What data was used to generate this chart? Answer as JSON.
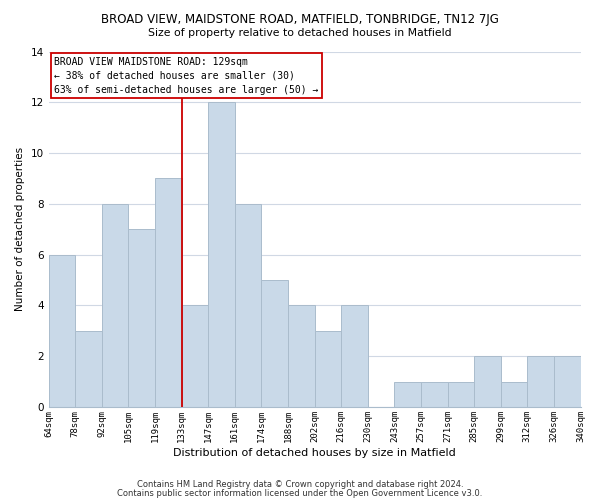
{
  "title": "BROAD VIEW, MAIDSTONE ROAD, MATFIELD, TONBRIDGE, TN12 7JG",
  "subtitle": "Size of property relative to detached houses in Matfield",
  "xlabel": "Distribution of detached houses by size in Matfield",
  "ylabel": "Number of detached properties",
  "bar_labels": [
    "64sqm",
    "78sqm",
    "92sqm",
    "105sqm",
    "119sqm",
    "133sqm",
    "147sqm",
    "161sqm",
    "174sqm",
    "188sqm",
    "202sqm",
    "216sqm",
    "230sqm",
    "243sqm",
    "257sqm",
    "271sqm",
    "285sqm",
    "299sqm",
    "312sqm",
    "326sqm",
    "340sqm"
  ],
  "bar_values": [
    6,
    3,
    8,
    7,
    9,
    4,
    12,
    8,
    5,
    4,
    3,
    4,
    0,
    1,
    1,
    1,
    2,
    1,
    2,
    2
  ],
  "bar_color": "#c9d9e8",
  "bar_edge_color": "#aabccc",
  "vline_x": 5.0,
  "vline_color": "#cc0000",
  "ylim": [
    0,
    14
  ],
  "yticks": [
    0,
    2,
    4,
    6,
    8,
    10,
    12,
    14
  ],
  "annotation_title": "BROAD VIEW MAIDSTONE ROAD: 129sqm",
  "annotation_line1": "← 38% of detached houses are smaller (30)",
  "annotation_line2": "63% of semi-detached houses are larger (50) →",
  "annotation_box_color": "#ffffff",
  "annotation_box_edge": "#cc0000",
  "footer1": "Contains HM Land Registry data © Crown copyright and database right 2024.",
  "footer2": "Contains public sector information licensed under the Open Government Licence v3.0.",
  "background_color": "#ffffff",
  "grid_color": "#d0d8e4"
}
